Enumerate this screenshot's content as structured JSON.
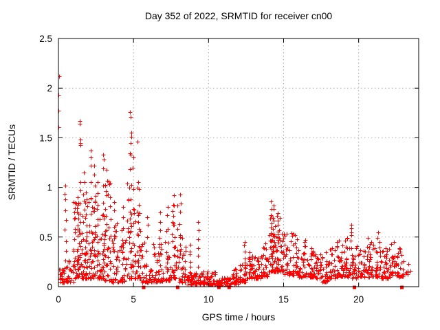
{
  "page": {
    "background": "#ffffff"
  },
  "chart_data": {
    "type": "scatter",
    "title": "Day 352 of 2022, SRMTID for receiver cn00",
    "xlabel": "GPS time / hours",
    "ylabel": "SRMTID / TECUs",
    "series_name": "SRMTID",
    "xlim": [
      0,
      24
    ],
    "ylim": [
      0,
      2.5
    ],
    "xticks": [
      0,
      5,
      10,
      15,
      20
    ],
    "xtick_labels": [
      "0",
      "5",
      "10",
      "15",
      "20"
    ],
    "yticks": [
      0,
      0.5,
      1,
      1.5,
      2,
      2.5
    ],
    "ytick_labels": [
      "0",
      "0.5",
      "1",
      "1.5",
      "2",
      "2.5"
    ],
    "grid": true,
    "legend": null,
    "marker": {
      "shape": "plus",
      "color": "#ff0000",
      "size": 7
    },
    "zero_marker": {
      "shape": "square",
      "color": "#ff0000",
      "size": 5
    },
    "grid_color": "#a8a8a8",
    "axis_color": "#000000",
    "outlier_points": [
      [
        0.05,
        2.12
      ],
      [
        0.0,
        1.93
      ],
      [
        0.0,
        1.77
      ],
      [
        0.0,
        1.61
      ],
      [
        1.42,
        1.67
      ],
      [
        1.43,
        1.64
      ],
      [
        1.45,
        1.48
      ],
      [
        1.46,
        1.45
      ],
      [
        1.47,
        1.43
      ],
      [
        2.15,
        1.37
      ],
      [
        2.98,
        1.33
      ],
      [
        4.78,
        1.76
      ],
      [
        4.81,
        1.71
      ],
      [
        4.84,
        1.55
      ],
      [
        4.87,
        1.51
      ],
      [
        4.8,
        1.33
      ],
      [
        5.27,
        1.46
      ],
      [
        19.5,
        0.59
      ],
      [
        19.52,
        0.52
      ]
    ],
    "zero_value_hours": [
      5.68,
      7.94,
      10.69,
      11.37,
      19.72,
      22.88
    ],
    "burst_columns": [
      [
        0.45,
        1.02,
        9
      ],
      [
        1.07,
        0.75,
        6
      ],
      [
        1.3,
        0.9,
        7
      ],
      [
        1.45,
        1.05,
        8
      ],
      [
        1.7,
        1.15,
        7
      ],
      [
        1.85,
        0.95,
        6
      ],
      [
        2.15,
        1.3,
        7
      ],
      [
        2.4,
        1.22,
        8
      ],
      [
        2.6,
        1.05,
        6
      ],
      [
        3.0,
        1.28,
        7
      ],
      [
        3.2,
        1.18,
        6
      ],
      [
        3.45,
        0.9,
        5
      ],
      [
        3.7,
        0.85,
        5
      ],
      [
        4.3,
        0.8,
        5
      ],
      [
        4.8,
        1.45,
        8
      ],
      [
        5.0,
        1.3,
        6
      ],
      [
        5.3,
        1.05,
        6
      ],
      [
        5.9,
        0.7,
        4
      ],
      [
        6.8,
        0.75,
        5
      ],
      [
        7.3,
        0.8,
        5
      ],
      [
        7.7,
        0.92,
        7
      ],
      [
        8.1,
        0.93,
        7
      ],
      [
        8.78,
        0.42,
        5
      ],
      [
        9.3,
        0.65,
        5
      ],
      [
        12.4,
        0.45,
        5
      ],
      [
        14.15,
        0.86,
        10
      ],
      [
        14.35,
        0.82,
        8
      ],
      [
        14.6,
        0.74,
        6
      ],
      [
        19.5,
        0.62,
        3
      ],
      [
        21.3,
        0.55,
        3
      ]
    ],
    "density_bins": {
      "bin_width_hours": 0.5,
      "bins": [
        [
          0.0,
          0.04,
          0.2,
          26
        ],
        [
          0.5,
          0.05,
          0.3,
          26
        ],
        [
          1.0,
          0.08,
          0.85,
          38
        ],
        [
          1.5,
          0.08,
          0.95,
          38
        ],
        [
          2.0,
          0.08,
          1.1,
          40
        ],
        [
          2.5,
          0.08,
          0.9,
          34
        ],
        [
          3.0,
          0.06,
          1.1,
          36
        ],
        [
          3.5,
          0.04,
          0.65,
          30
        ],
        [
          4.0,
          0.05,
          0.6,
          30
        ],
        [
          4.5,
          0.08,
          1.05,
          36
        ],
        [
          5.0,
          0.08,
          1.0,
          36
        ],
        [
          5.5,
          0.04,
          0.5,
          28
        ],
        [
          6.0,
          0.05,
          0.45,
          28
        ],
        [
          6.5,
          0.05,
          0.55,
          28
        ],
        [
          7.0,
          0.06,
          0.65,
          30
        ],
        [
          7.5,
          0.08,
          0.88,
          32
        ],
        [
          8.0,
          0.04,
          0.55,
          28
        ],
        [
          8.5,
          0.02,
          0.15,
          28
        ],
        [
          9.0,
          0.02,
          0.15,
          28
        ],
        [
          9.5,
          0.03,
          0.18,
          30
        ],
        [
          10.0,
          0.02,
          0.15,
          30
        ],
        [
          10.5,
          0.0,
          0.1,
          30
        ],
        [
          11.0,
          0.0,
          0.1,
          30
        ],
        [
          11.5,
          0.03,
          0.18,
          30
        ],
        [
          12.0,
          0.05,
          0.25,
          30
        ],
        [
          12.5,
          0.08,
          0.35,
          30
        ],
        [
          13.0,
          0.08,
          0.32,
          30
        ],
        [
          13.5,
          0.1,
          0.5,
          32
        ],
        [
          14.0,
          0.15,
          0.8,
          42
        ],
        [
          14.5,
          0.15,
          0.72,
          38
        ],
        [
          15.0,
          0.12,
          0.55,
          32
        ],
        [
          15.5,
          0.12,
          0.55,
          32
        ],
        [
          16.0,
          0.1,
          0.5,
          32
        ],
        [
          16.5,
          0.1,
          0.48,
          32
        ],
        [
          17.0,
          0.08,
          0.45,
          32
        ],
        [
          17.5,
          0.05,
          0.35,
          30
        ],
        [
          18.0,
          0.08,
          0.4,
          30
        ],
        [
          18.5,
          0.1,
          0.48,
          32
        ],
        [
          19.0,
          0.1,
          0.5,
          32
        ],
        [
          19.5,
          0.08,
          0.48,
          32
        ],
        [
          20.0,
          0.1,
          0.45,
          32
        ],
        [
          20.5,
          0.1,
          0.5,
          32
        ],
        [
          21.0,
          0.1,
          0.46,
          32
        ],
        [
          21.5,
          0.08,
          0.4,
          30
        ],
        [
          22.0,
          0.1,
          0.46,
          30
        ],
        [
          22.5,
          0.1,
          0.4,
          28
        ],
        [
          23.0,
          0.12,
          0.28,
          8
        ],
        [
          23.5,
          0.0,
          0.0,
          0
        ]
      ]
    },
    "generation": {
      "seed": 20221218,
      "low_bias_power": 2.2,
      "column_cluster_prob": 0.5
    }
  }
}
